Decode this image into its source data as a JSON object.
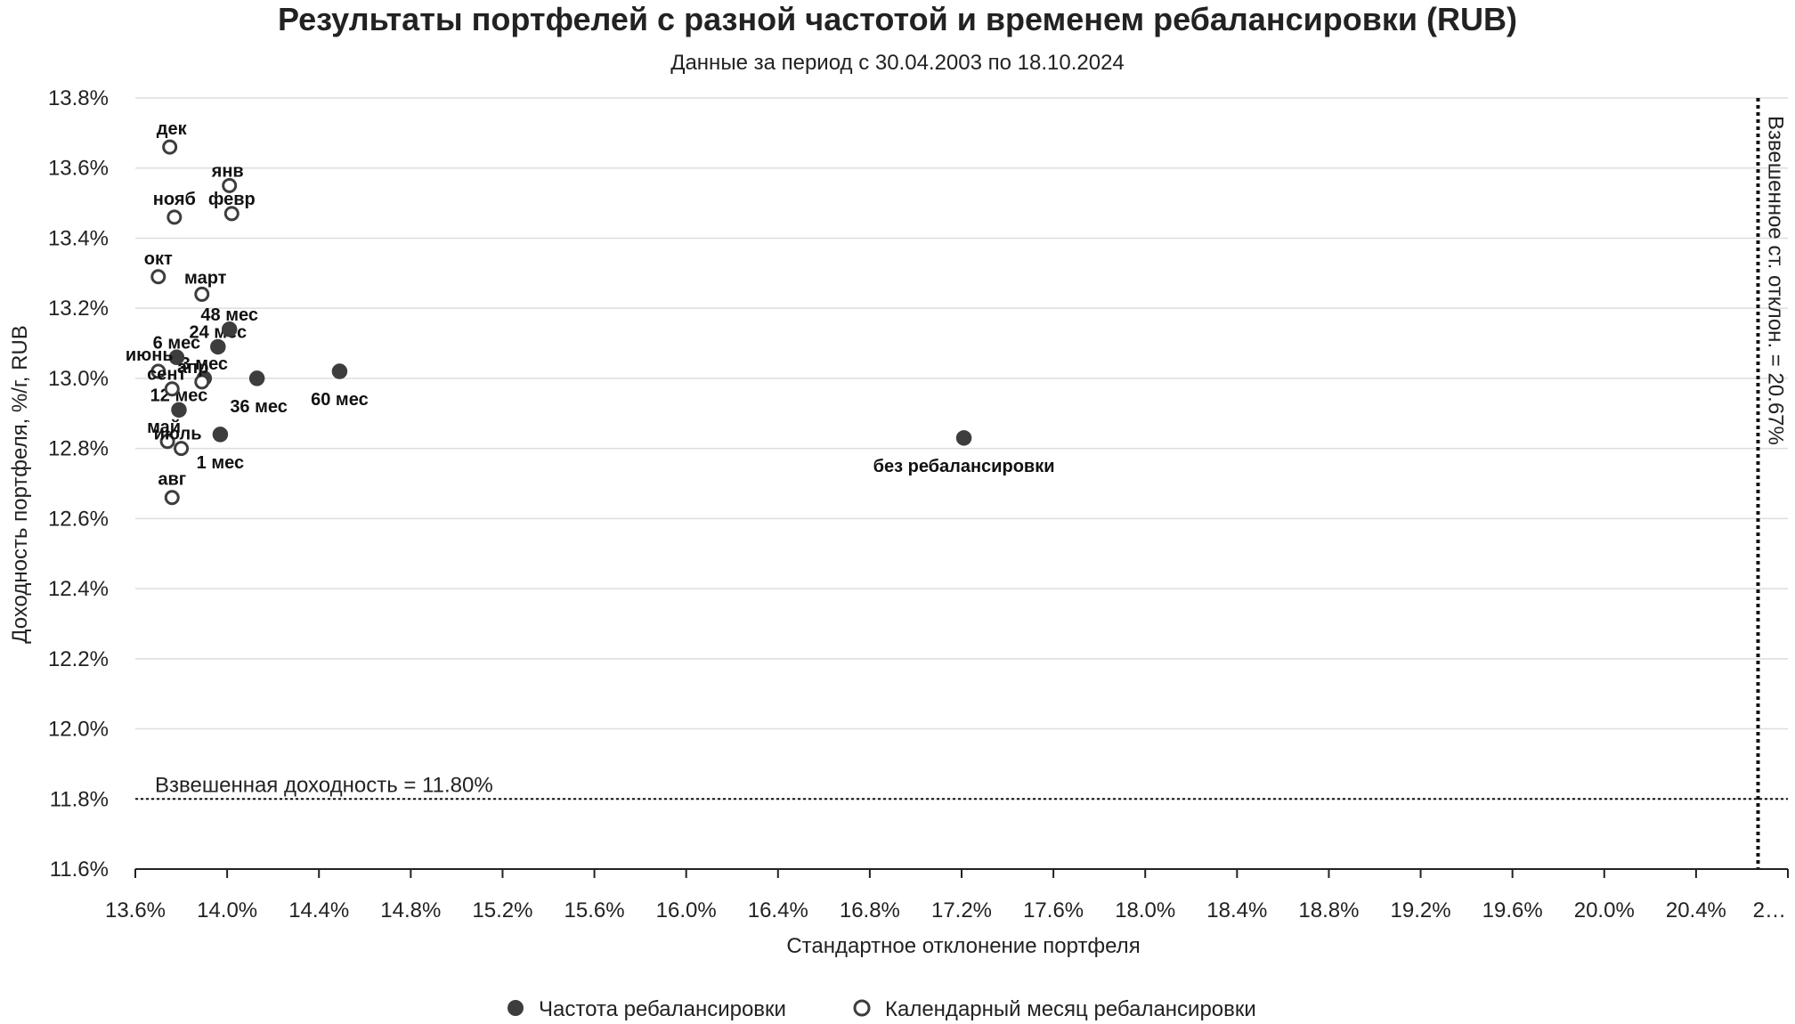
{
  "chart_data": {
    "type": "scatter",
    "title": "Результаты портфелей с разной частотой и временем ребалансировки (RUB)",
    "subtitle": "Данные за период с 30.04.2003 по 18.10.2024",
    "xlabel": "Стандартное отклонение портфеля",
    "ylabel": "Доходность портфеля, %/г, RUB",
    "xlim": [
      13.6,
      20.8
    ],
    "ylim": [
      11.6,
      13.8
    ],
    "x_ticks": [
      "13.6%",
      "14.0%",
      "14.4%",
      "14.8%",
      "15.2%",
      "15.6%",
      "16.0%",
      "16.4%",
      "16.8%",
      "17.2%",
      "17.6%",
      "18.0%",
      "18.4%",
      "18.8%",
      "19.2%",
      "19.6%",
      "20.0%",
      "20.4%",
      "2…"
    ],
    "x_tick_values": [
      13.6,
      14.0,
      14.4,
      14.8,
      15.2,
      15.6,
      16.0,
      16.4,
      16.8,
      17.2,
      17.6,
      18.0,
      18.4,
      18.8,
      19.2,
      19.6,
      20.0,
      20.4,
      20.8
    ],
    "y_ticks": [
      "11.6%",
      "11.8%",
      "12.0%",
      "12.2%",
      "12.4%",
      "12.6%",
      "12.8%",
      "13.0%",
      "13.2%",
      "13.4%",
      "13.6%",
      "13.8%"
    ],
    "y_tick_values": [
      11.6,
      11.8,
      12.0,
      12.2,
      12.4,
      12.6,
      12.8,
      13.0,
      13.2,
      13.4,
      13.6,
      13.8
    ],
    "grid": "horizontal",
    "legend_position": "bottom",
    "reference_lines": [
      {
        "axis": "y",
        "value": 11.8,
        "label": "Взвешенная доходность = 11.80%"
      },
      {
        "axis": "x",
        "value": 20.67,
        "label": "Взвешенное ст. отклон. = 20.67%"
      }
    ],
    "series": [
      {
        "name": "Частота ребалансировки",
        "marker": "filled",
        "color": "#3d3d3d",
        "points": [
          {
            "label": "1 мес",
            "x": 13.97,
            "y": 12.84
          },
          {
            "label": "3 мес",
            "x": 13.9,
            "y": 13.0
          },
          {
            "label": "6 мес",
            "x": 13.78,
            "y": 13.06
          },
          {
            "label": "12 мес",
            "x": 13.79,
            "y": 12.91
          },
          {
            "label": "24 мес",
            "x": 13.96,
            "y": 13.09
          },
          {
            "label": "36 мес",
            "x": 14.13,
            "y": 13.0
          },
          {
            "label": "48 мес",
            "x": 14.01,
            "y": 13.14
          },
          {
            "label": "60 мес",
            "x": 14.49,
            "y": 13.02
          },
          {
            "label": "без ребалансировки",
            "x": 17.21,
            "y": 12.83
          }
        ]
      },
      {
        "name": "Календарный месяц ребалансировки",
        "marker": "hollow",
        "color": "#3d3d3d",
        "points": [
          {
            "label": "янв",
            "x": 14.01,
            "y": 13.55
          },
          {
            "label": "февр",
            "x": 14.02,
            "y": 13.47
          },
          {
            "label": "март",
            "x": 13.89,
            "y": 13.24
          },
          {
            "label": "апр",
            "x": 13.89,
            "y": 12.99
          },
          {
            "label": "май",
            "x": 13.74,
            "y": 12.82
          },
          {
            "label": "июнь",
            "x": 13.7,
            "y": 13.02
          },
          {
            "label": "июль",
            "x": 13.8,
            "y": 12.8
          },
          {
            "label": "авг",
            "x": 13.76,
            "y": 12.66
          },
          {
            "label": "сент",
            "x": 13.76,
            "y": 12.97
          },
          {
            "label": "окт",
            "x": 13.7,
            "y": 13.29
          },
          {
            "label": "нояб",
            "x": 13.77,
            "y": 13.46
          },
          {
            "label": "дек",
            "x": 13.75,
            "y": 13.66
          }
        ]
      }
    ]
  }
}
